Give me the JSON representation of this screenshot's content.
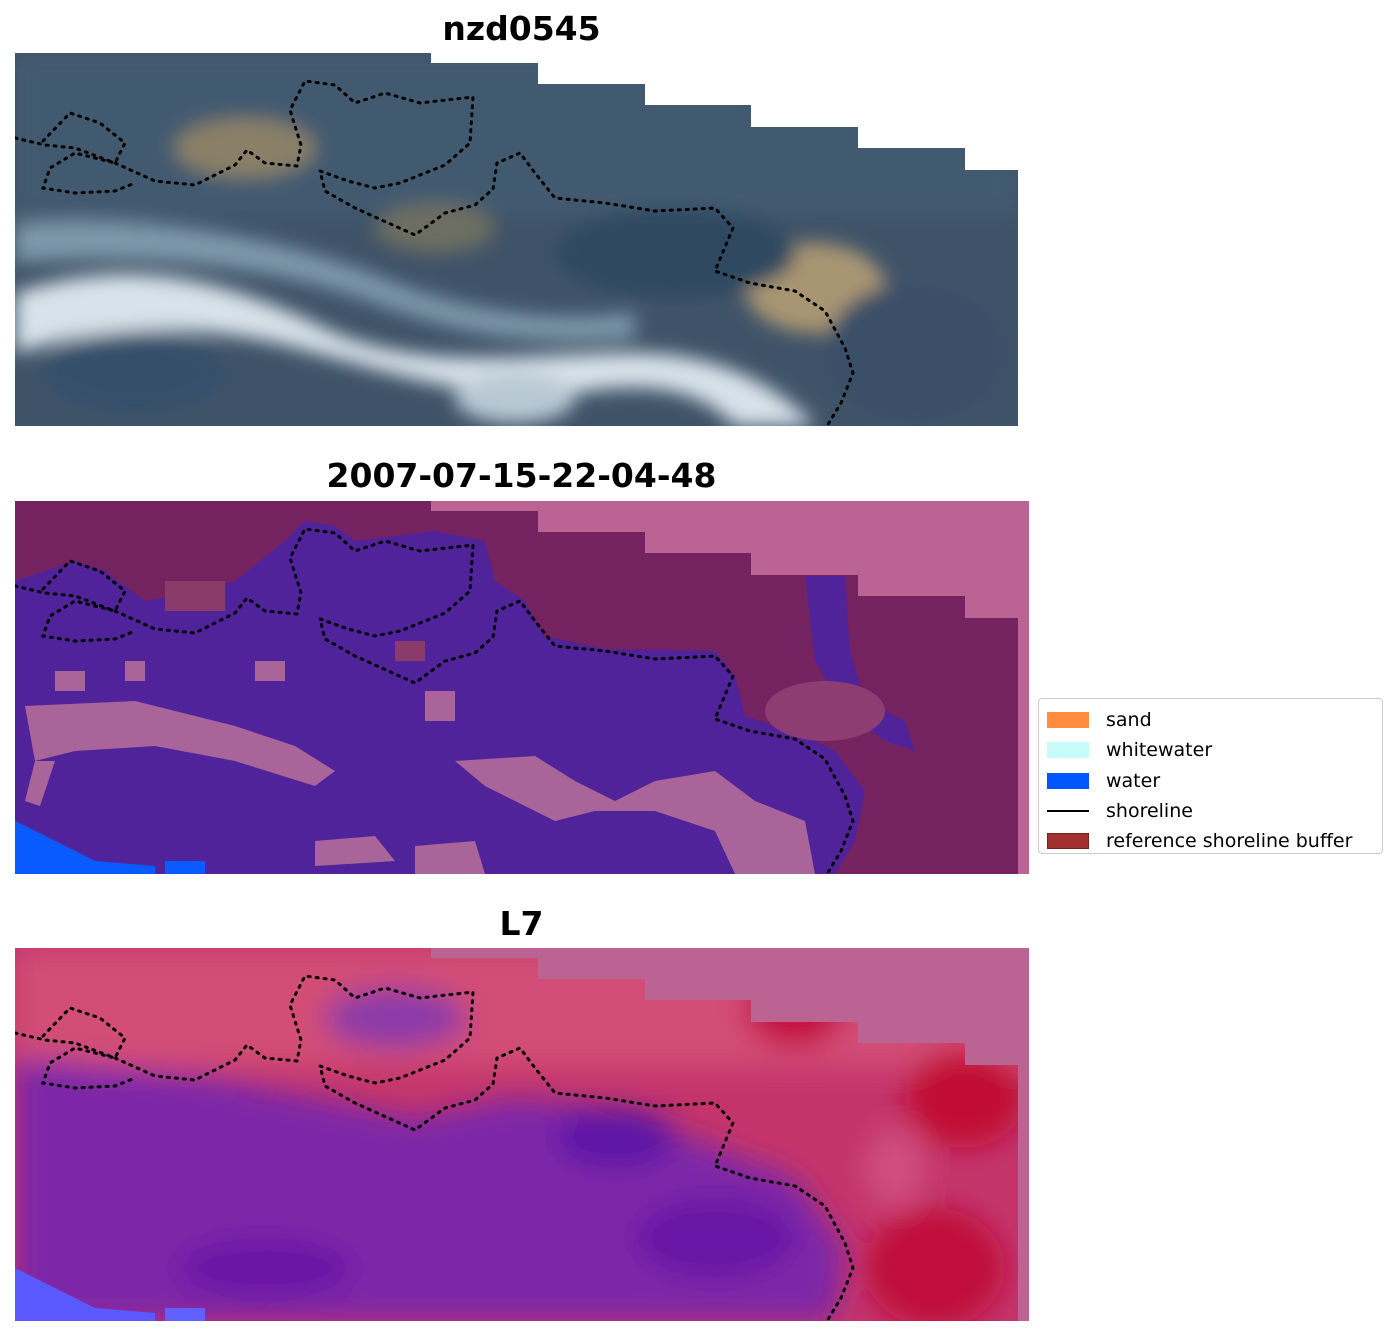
{
  "panels": [
    {
      "title": "nzd0545"
    },
    {
      "title": "2007-07-15-22-04-48"
    },
    {
      "title": "L7"
    }
  ],
  "legend": {
    "items": [
      {
        "label": "sand",
        "kind": "patch",
        "color": "#ff8c3f"
      },
      {
        "label": "whitewater",
        "kind": "patch",
        "color": "#c8fcf9"
      },
      {
        "label": "water",
        "kind": "patch",
        "color": "#0057ff"
      },
      {
        "label": "shoreline",
        "kind": "line",
        "color": "#000000"
      },
      {
        "label": "reference shoreline buffer",
        "kind": "patch",
        "color": "#a33030",
        "edge": "#7a1f1f"
      }
    ]
  },
  "colors": {
    "rgb_sky": "#4c6075",
    "classified_water_class": "#51239a",
    "classified_land": "#742260",
    "buffer_pink": "#bb6494",
    "classified_water_blue": "#0a5bff",
    "index_low": "#5b14a6",
    "index_high": "#c40a3f"
  }
}
